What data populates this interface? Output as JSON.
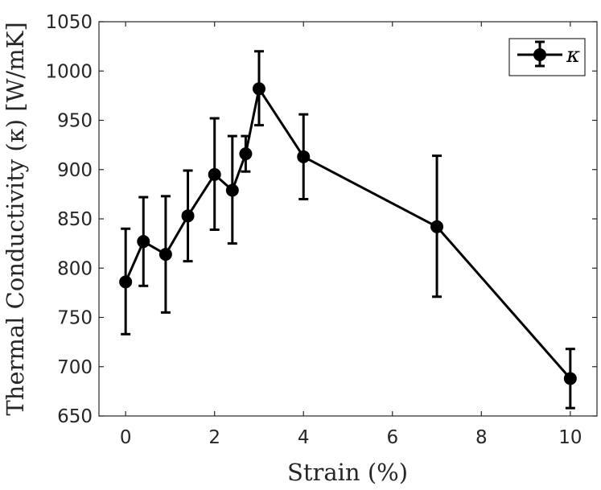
{
  "chart_data": {
    "type": "line",
    "xlabel": "Strain (%)",
    "ylabel": "Thermal Conductivity (κ) [W/mK]",
    "xlim": [
      -0.6,
      10.6
    ],
    "ylim": [
      650,
      1050
    ],
    "x_ticks": [
      0,
      2,
      4,
      6,
      8,
      10
    ],
    "y_ticks": [
      650,
      700,
      750,
      800,
      850,
      900,
      950,
      1000,
      1050
    ],
    "grid": false,
    "legend_position": "top-right",
    "series": [
      {
        "name": "κ",
        "color": "#000000",
        "marker": "circle",
        "x": [
          0,
          0.4,
          0.9,
          1.4,
          2,
          2.4,
          2.7,
          3,
          4,
          7,
          10
        ],
        "y": [
          786,
          827,
          814,
          853,
          895,
          879,
          916,
          982,
          913,
          842,
          688
        ],
        "error_lower": [
          733,
          782,
          755,
          807,
          839,
          825,
          898,
          945,
          870,
          771,
          658
        ],
        "error_upper": [
          840,
          872,
          873,
          899,
          952,
          934,
          934,
          1020,
          956,
          914,
          718
        ]
      }
    ]
  }
}
